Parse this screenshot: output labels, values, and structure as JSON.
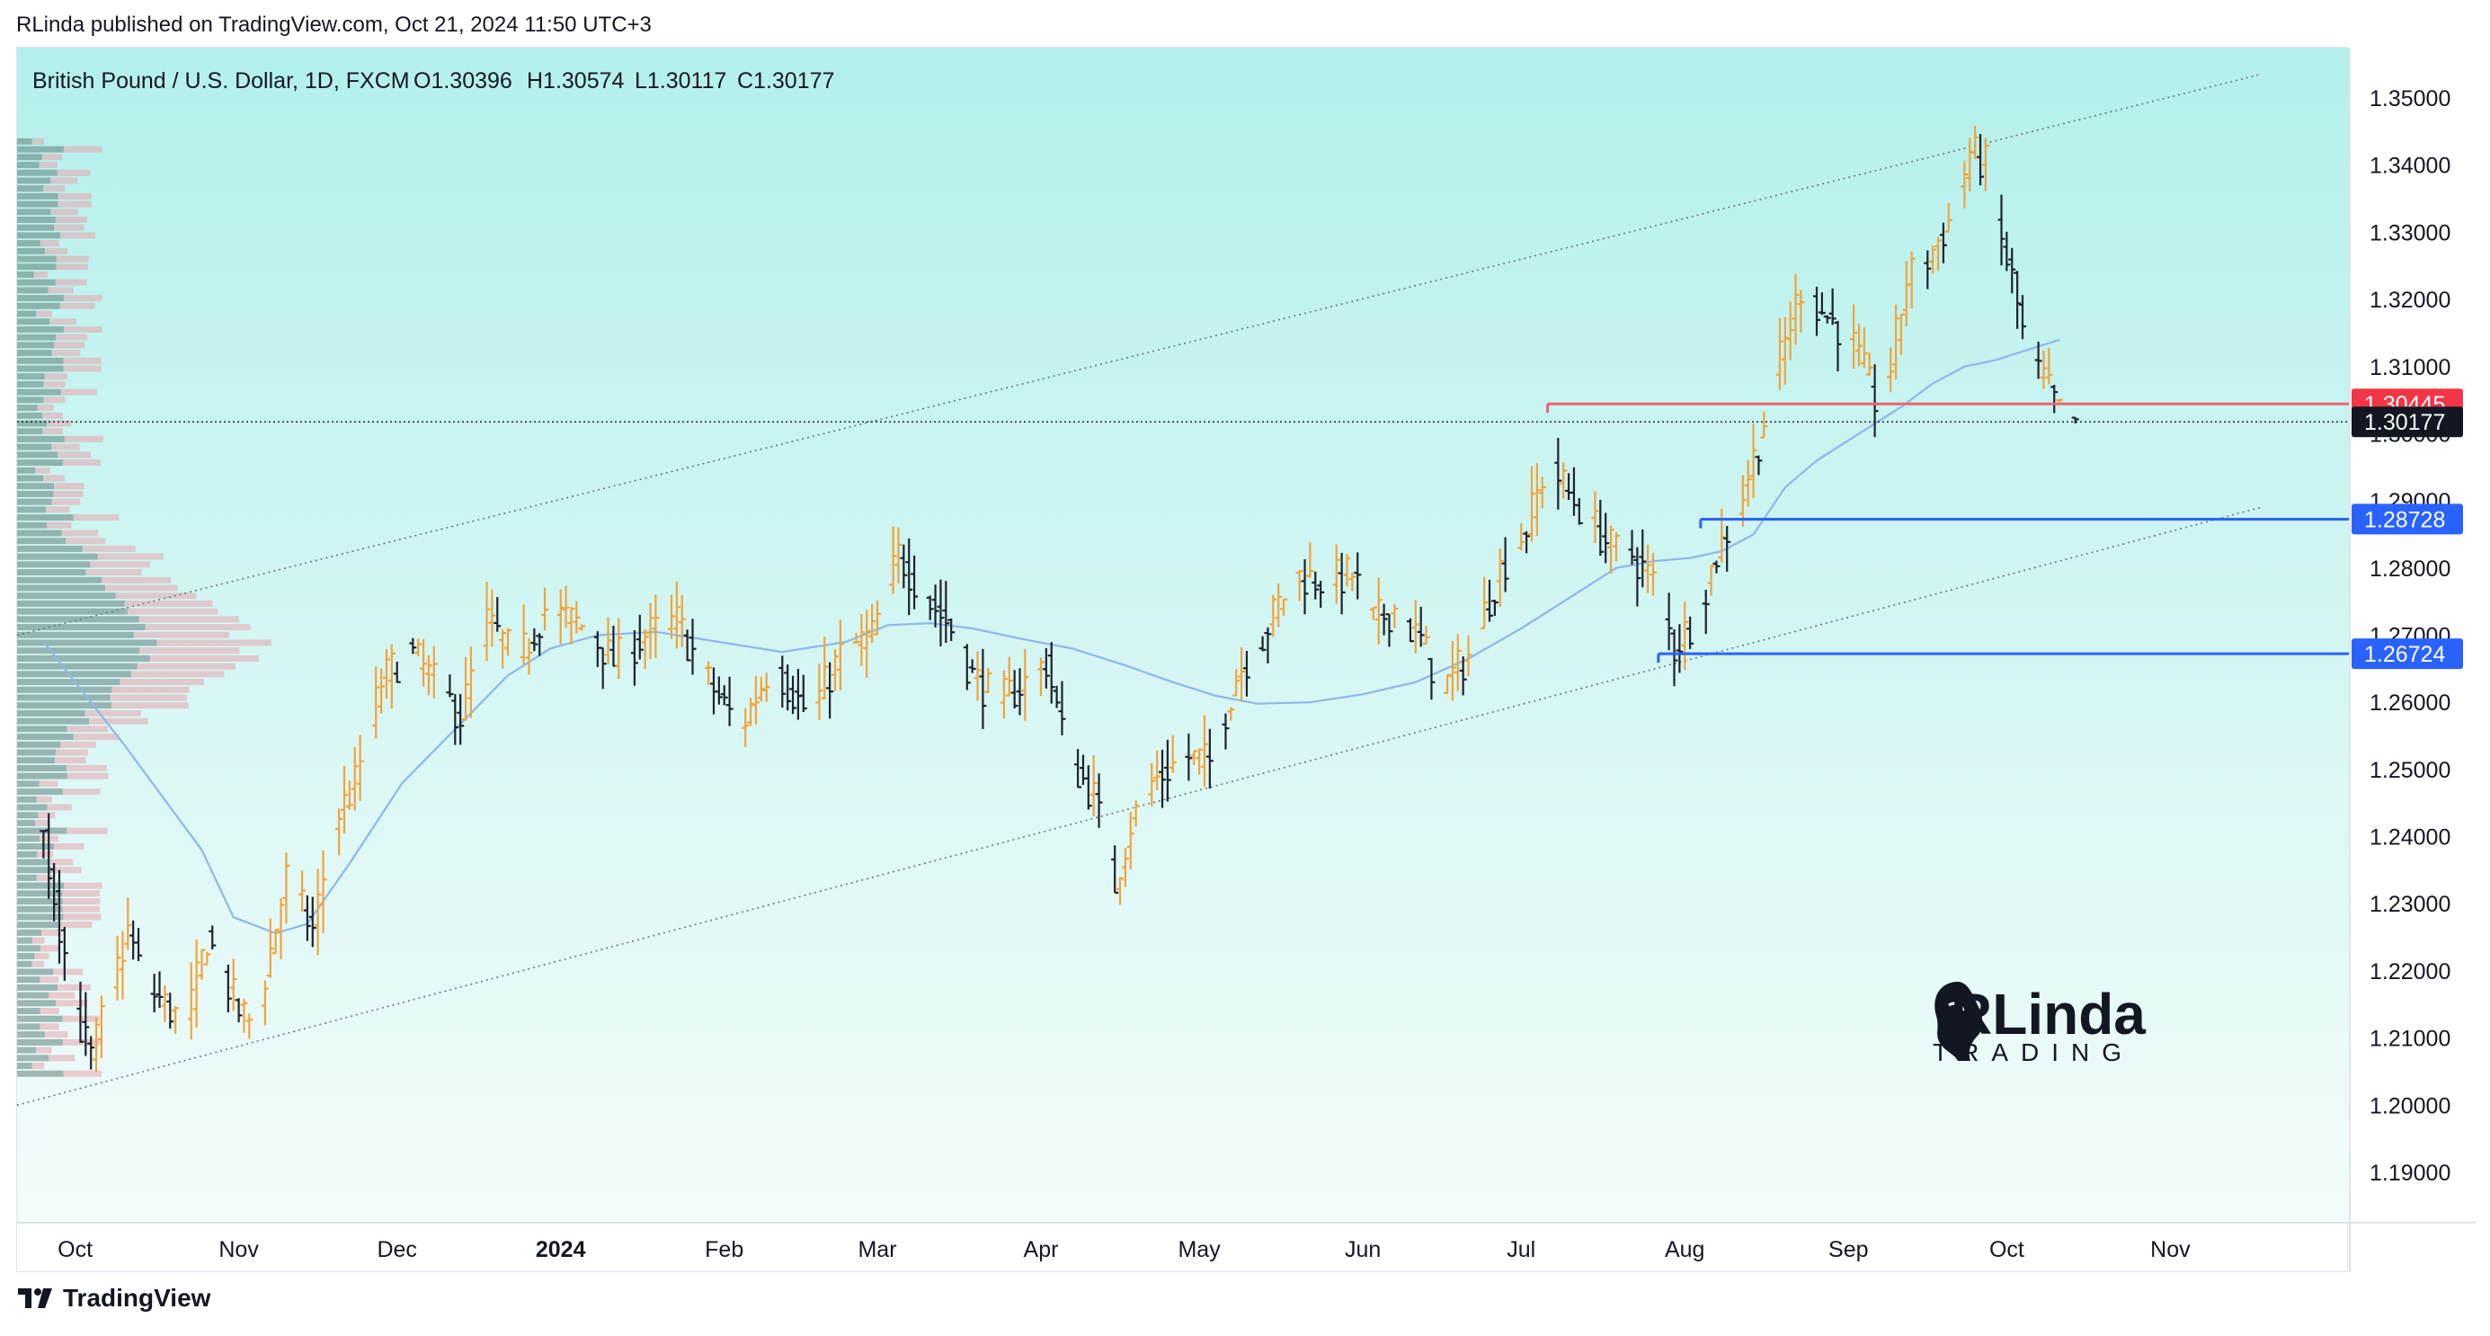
{
  "header": {
    "published_line": "RLinda published on TradingView.com, Oct 21, 2024 11:50 UTC+3"
  },
  "footer": {
    "brand": "TradingView",
    "logo_icon": "tradingview-logo-icon"
  },
  "watermark": {
    "line1": "RLinda",
    "line2": "TRADING",
    "icon": "profile-head-icon"
  },
  "colors": {
    "bull_bar": "#f2a33a",
    "bear_bar": "#1e222d",
    "ma_line": "#8fb7ea",
    "channel": "#70757f",
    "resistance": "#f08a8a",
    "support": "#3b6cf2",
    "bg_top": "#b3f0eb",
    "bg_bottom": "#f3fcfb"
  },
  "chart_data": {
    "type": "ohlc",
    "title": "British Pound / U.S. Dollar, 1D, FXCM",
    "ohlc_summary": {
      "open": "O1.30396",
      "high": "H1.30574",
      "low": "L1.30117",
      "close": "C1.30177"
    },
    "ylim": [
      1.1825,
      1.3575
    ],
    "y_ticks": [
      "1.35000",
      "1.34000",
      "1.33000",
      "1.32000",
      "1.31000",
      "1.30000",
      "1.29000",
      "1.28000",
      "1.27000",
      "1.26000",
      "1.25000",
      "1.24000",
      "1.23000",
      "1.22000",
      "1.21000",
      "1.20000",
      "1.19000"
    ],
    "x_labels": [
      {
        "label": "Oct",
        "day": 6,
        "bold": false
      },
      {
        "label": "Nov",
        "day": 37,
        "bold": false
      },
      {
        "label": "Dec",
        "day": 67,
        "bold": false
      },
      {
        "label": "2024",
        "day": 98,
        "bold": true
      },
      {
        "label": "Feb",
        "day": 129,
        "bold": false
      },
      {
        "label": "Mar",
        "day": 158,
        "bold": false
      },
      {
        "label": "Apr",
        "day": 189,
        "bold": false
      },
      {
        "label": "May",
        "day": 219,
        "bold": false
      },
      {
        "label": "Jun",
        "day": 250,
        "bold": false
      },
      {
        "label": "Jul",
        "day": 280,
        "bold": false
      },
      {
        "label": "Aug",
        "day": 311,
        "bold": false
      },
      {
        "label": "Sep",
        "day": 342,
        "bold": false
      },
      {
        "label": "Oct",
        "day": 372,
        "bold": false
      },
      {
        "label": "Nov",
        "day": 403,
        "bold": false
      }
    ],
    "x_range_days": [
      -5,
      437
    ],
    "last_day": 385,
    "price_path": [
      [
        0,
        1.24
      ],
      [
        6,
        1.214
      ],
      [
        9,
        1.207
      ],
      [
        16,
        1.226
      ],
      [
        19,
        1.218
      ],
      [
        27,
        1.212
      ],
      [
        31,
        1.225
      ],
      [
        37,
        1.214
      ],
      [
        40,
        1.212
      ],
      [
        46,
        1.234
      ],
      [
        51,
        1.226
      ],
      [
        55,
        1.242
      ],
      [
        59,
        1.248
      ],
      [
        64,
        1.263
      ],
      [
        69,
        1.268
      ],
      [
        73,
        1.264
      ],
      [
        79,
        1.258
      ],
      [
        84,
        1.272
      ],
      [
        90,
        1.266
      ],
      [
        95,
        1.274
      ],
      [
        103,
        1.271
      ],
      [
        108,
        1.266
      ],
      [
        114,
        1.27
      ],
      [
        120,
        1.272
      ],
      [
        126,
        1.263
      ],
      [
        132,
        1.256
      ],
      [
        138,
        1.266
      ],
      [
        145,
        1.258
      ],
      [
        151,
        1.267
      ],
      [
        157,
        1.27
      ],
      [
        162,
        1.282
      ],
      [
        166,
        1.277
      ],
      [
        172,
        1.271
      ],
      [
        176,
        1.264
      ],
      [
        181,
        1.26
      ],
      [
        186,
        1.263
      ],
      [
        190,
        1.266
      ],
      [
        194,
        1.252
      ],
      [
        199,
        1.246
      ],
      [
        203,
        1.233
      ],
      [
        206,
        1.242
      ],
      [
        210,
        1.248
      ],
      [
        216,
        1.252
      ],
      [
        221,
        1.251
      ],
      [
        226,
        1.264
      ],
      [
        231,
        1.27
      ],
      [
        237,
        1.279
      ],
      [
        243,
        1.278
      ],
      [
        248,
        1.279
      ],
      [
        252,
        1.272
      ],
      [
        256,
        1.274
      ],
      [
        261,
        1.269
      ],
      [
        265,
        1.262
      ],
      [
        270,
        1.267
      ],
      [
        276,
        1.28
      ],
      [
        281,
        1.286
      ],
      [
        285,
        1.296
      ],
      [
        289,
        1.291
      ],
      [
        293,
        1.287
      ],
      [
        297,
        1.283
      ],
      [
        301,
        1.282
      ],
      [
        305,
        1.278
      ],
      [
        309,
        1.268
      ],
      [
        313,
        1.273
      ],
      [
        317,
        1.282
      ],
      [
        321,
        1.289
      ],
      [
        325,
        1.299
      ],
      [
        329,
        1.311
      ],
      [
        333,
        1.322
      ],
      [
        336,
        1.319
      ],
      [
        340,
        1.316
      ],
      [
        343,
        1.313
      ],
      [
        347,
        1.305
      ],
      [
        350,
        1.31
      ],
      [
        353,
        1.323
      ],
      [
        357,
        1.326
      ],
      [
        362,
        1.333
      ],
      [
        365,
        1.342
      ],
      [
        368,
        1.34
      ],
      [
        370,
        1.331
      ],
      [
        373,
        1.323
      ],
      [
        376,
        1.311
      ],
      [
        379,
        1.308
      ],
      [
        382,
        1.303
      ],
      [
        385,
        1.3018
      ]
    ],
    "moving_average": [
      [
        0,
        1.269
      ],
      [
        15,
        1.254
      ],
      [
        30,
        1.238
      ],
      [
        36,
        1.228
      ],
      [
        44,
        1.2256
      ],
      [
        50,
        1.227
      ],
      [
        58,
        1.236
      ],
      [
        68,
        1.248
      ],
      [
        78,
        1.256
      ],
      [
        88,
        1.264
      ],
      [
        96,
        1.268
      ],
      [
        105,
        1.27
      ],
      [
        116,
        1.2705
      ],
      [
        128,
        1.269
      ],
      [
        140,
        1.2675
      ],
      [
        152,
        1.269
      ],
      [
        160,
        1.2715
      ],
      [
        168,
        1.2718
      ],
      [
        176,
        1.271
      ],
      [
        185,
        1.2695
      ],
      [
        195,
        1.268
      ],
      [
        205,
        1.2655
      ],
      [
        214,
        1.263
      ],
      [
        222,
        1.261
      ],
      [
        230,
        1.2598
      ],
      [
        240,
        1.26
      ],
      [
        250,
        1.2612
      ],
      [
        260,
        1.263
      ],
      [
        270,
        1.2665
      ],
      [
        280,
        1.271
      ],
      [
        290,
        1.276
      ],
      [
        298,
        1.28
      ],
      [
        305,
        1.281
      ],
      [
        312,
        1.2815
      ],
      [
        318,
        1.2825
      ],
      [
        324,
        1.285
      ],
      [
        330,
        1.292
      ],
      [
        336,
        1.296
      ],
      [
        344,
        1.3
      ],
      [
        352,
        1.304
      ],
      [
        358,
        1.3075
      ],
      [
        364,
        1.31
      ],
      [
        370,
        1.311
      ],
      [
        376,
        1.3125
      ],
      [
        382,
        1.314
      ]
    ],
    "channel_upper": {
      "start": [
        -5,
        1.27
      ],
      "end": [
        420,
        1.3535
      ]
    },
    "channel_lower": {
      "start": [
        -5,
        1.2
      ],
      "end": [
        420,
        1.289
      ]
    },
    "current_price": {
      "value": 1.30177,
      "label": "1.30177",
      "color": "#131722"
    },
    "levels": [
      {
        "name": "resistance-level",
        "value": 1.30445,
        "label": "1.30445",
        "from_day": 285,
        "color": "#f0636d",
        "tag_color": "#f23645"
      },
      {
        "name": "support-level-upper",
        "value": 1.28728,
        "label": "1.28728",
        "from_day": 314,
        "color": "#2962ff",
        "tag_color": "#2962ff"
      },
      {
        "name": "support-level-lower",
        "value": 1.26724,
        "label": "1.26724",
        "from_day": 306,
        "color": "#2962ff",
        "tag_color": "#2962ff"
      }
    ],
    "volume_profile": {
      "price_top": 1.344,
      "price_bottom": 1.204,
      "rows": 120,
      "peak_price": 1.27
    }
  }
}
